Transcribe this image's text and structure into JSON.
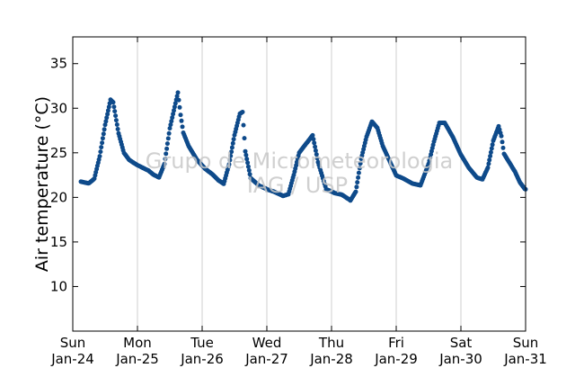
{
  "chart_data": {
    "type": "scatter",
    "title": "",
    "xlabel": "",
    "ylabel": "Air temperature (°C)",
    "ylim": [
      5,
      38
    ],
    "xlim": [
      "2016-01-24",
      "2016-01-31"
    ],
    "y_ticks": [
      10,
      15,
      20,
      25,
      30,
      35
    ],
    "x_ticks": [
      {
        "day": "Sun",
        "date": "Jan-24"
      },
      {
        "day": "Mon",
        "date": "Jan-25"
      },
      {
        "day": "Tue",
        "date": "Jan-26"
      },
      {
        "day": "Wed",
        "date": "Jan-27"
      },
      {
        "day": "Thu",
        "date": "Jan-28"
      },
      {
        "day": "Fri",
        "date": "Jan-29"
      },
      {
        "day": "Sat",
        "date": "Jan-30"
      },
      {
        "day": "Sun",
        "date": "Jan-31"
      }
    ],
    "grid": "vertical",
    "marker_color": "#0e4a8a",
    "watermark_lines": [
      "Grupo de Micrometeorologia",
      "IAG / USP"
    ],
    "series": [
      {
        "x": [
          "2016-01-24 03:00",
          "2016-01-24 06:00",
          "2016-01-24 08:00",
          "2016-01-24 10:00",
          "2016-01-24 12:00",
          "2016-01-24 14:00",
          "2016-01-24 15:00",
          "2016-01-24 17:00",
          "2016-01-24 19:00",
          "2016-01-24 21:00",
          "2016-01-25 00:00",
          "2016-01-25 04:00",
          "2016-01-25 06:00",
          "2016-01-25 08:00",
          "2016-01-25 10:00",
          "2016-01-25 12:00",
          "2016-01-25 15:00",
          "2016-01-25 16:00",
          "2016-01-25 17:00",
          "2016-01-25 19:00",
          "2016-01-25 22:00",
          "2016-01-26 01:00",
          "2016-01-26 04:00",
          "2016-01-26 06:00",
          "2016-01-26 08:00",
          "2016-01-26 10:00",
          "2016-01-26 12:00",
          "2016-01-26 14:00",
          "2016-01-26 15:00",
          "2016-01-26 16:00",
          "2016-01-26 18:00",
          "2016-01-26 21:00",
          "2016-01-27 00:00",
          "2016-01-27 03:00",
          "2016-01-27 06:00",
          "2016-01-27 08:00",
          "2016-01-27 10:00",
          "2016-01-27 12:00",
          "2016-01-27 15:00",
          "2016-01-27 17:00",
          "2016-01-27 19:00",
          "2016-01-27 22:00",
          "2016-01-28 01:00",
          "2016-01-28 04:00",
          "2016-01-28 07:00",
          "2016-01-28 09:00",
          "2016-01-28 11:00",
          "2016-01-28 13:00",
          "2016-01-28 15:00",
          "2016-01-28 17:00",
          "2016-01-28 19:00",
          "2016-01-28 22:00",
          "2016-01-29 00:00",
          "2016-01-29 03:00",
          "2016-01-29 06:00",
          "2016-01-29 09:00",
          "2016-01-29 12:00",
          "2016-01-29 14:00",
          "2016-01-29 16:00",
          "2016-01-29 18:00",
          "2016-01-29 21:00",
          "2016-01-30 00:00",
          "2016-01-30 03:00",
          "2016-01-30 06:00",
          "2016-01-30 08:00",
          "2016-01-30 10:00",
          "2016-01-30 12:00",
          "2016-01-30 14:00",
          "2016-01-30 15:00",
          "2016-01-30 16:00",
          "2016-01-30 18:00",
          "2016-01-30 20:00",
          "2016-01-30 22:00",
          "2016-01-31 00:00"
        ],
        "y": [
          21.7,
          21.5,
          22.0,
          24.5,
          28.0,
          30.8,
          30.5,
          27.0,
          24.8,
          24.0,
          23.4,
          22.8,
          22.3,
          22.0,
          23.5,
          27.5,
          31.5,
          29.0,
          27.0,
          25.5,
          24.0,
          23.0,
          22.3,
          21.7,
          21.3,
          23.5,
          26.8,
          29.2,
          29.4,
          25.0,
          22.0,
          21.2,
          20.8,
          20.5,
          20.1,
          20.3,
          22.5,
          25.0,
          26.2,
          27.0,
          24.0,
          21.0,
          20.6,
          20.4,
          19.8,
          20.8,
          24.5,
          27.0,
          28.7,
          28.0,
          26.0,
          24.0,
          22.7,
          22.3,
          21.8,
          21.6,
          24.0,
          26.5,
          28.6,
          28.6,
          27.0,
          25.0,
          23.5,
          22.4,
          22.2,
          23.5,
          26.5,
          28.1,
          27.0,
          25.0,
          24.0,
          23.0,
          21.7,
          20.9
        ]
      }
    ]
  }
}
